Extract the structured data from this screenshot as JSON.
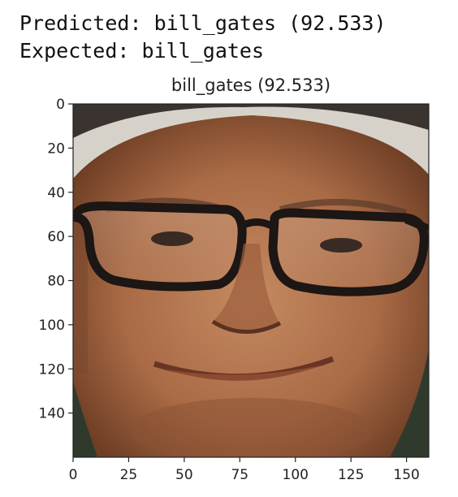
{
  "console": {
    "predicted": "Predicted: bill_gates (92.533)",
    "expected": "Expected: bill_gates"
  },
  "plot": {
    "title": "bill_gates (92.533)",
    "image_subject": "face-photo",
    "image_width": 160,
    "image_height": 160,
    "xticks": [
      "0",
      "25",
      "50",
      "75",
      "100",
      "125",
      "150"
    ],
    "yticks": [
      "0",
      "20",
      "40",
      "60",
      "80",
      "100",
      "120",
      "140"
    ]
  }
}
